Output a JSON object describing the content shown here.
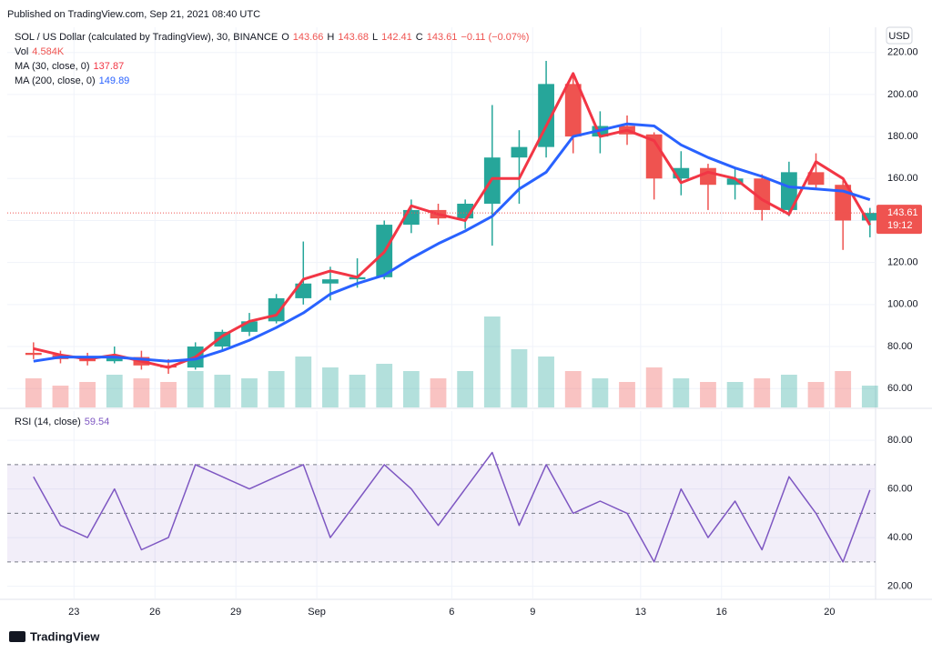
{
  "chart_data": {
    "type": "candlestick",
    "title": "Published on TradingView.com, Sep 21, 2021 08:40 UTC",
    "symbol": "SOL / US Dollar (calculated by TradingView), 30, BINANCE",
    "ohlc": [
      {
        "label": "O",
        "value": 143.66
      },
      {
        "label": "H",
        "value": 143.68
      },
      {
        "label": "L",
        "value": 142.41
      },
      {
        "label": "C",
        "value": 143.61
      }
    ],
    "change": "−0.11 (−0.07%)",
    "currency": "USD",
    "brand": "TradingView",
    "up_color": "#26a69a",
    "down_color": "#ef5350",
    "x": [
      "2021-08-21",
      "2021-08-22",
      "2021-08-23",
      "2021-08-24",
      "2021-08-25",
      "2021-08-26",
      "2021-08-27",
      "2021-08-28",
      "2021-08-29",
      "2021-08-30",
      "2021-08-31",
      "2021-09-01",
      "2021-09-02",
      "2021-09-03",
      "2021-09-04",
      "2021-09-05",
      "2021-09-06",
      "2021-09-07",
      "2021-09-08",
      "2021-09-09",
      "2021-09-10",
      "2021-09-11",
      "2021-09-12",
      "2021-09-13",
      "2021-09-14",
      "2021-09-15",
      "2021-09-16",
      "2021-09-17",
      "2021-09-18",
      "2021-09-19",
      "2021-09-20",
      "2021-09-21"
    ],
    "open": [
      77,
      76,
      74,
      73,
      75,
      71,
      70,
      80,
      87,
      92,
      103,
      110,
      112,
      113,
      138,
      145,
      141,
      148,
      170,
      175,
      205,
      180,
      185,
      181,
      160,
      165,
      157,
      160,
      145,
      163,
      157,
      140
    ],
    "high": [
      82,
      78,
      77,
      80,
      78,
      74,
      82,
      88,
      96,
      105,
      130,
      118,
      122,
      140,
      150,
      148,
      150,
      195,
      183,
      216,
      210,
      192,
      190,
      182,
      173,
      167,
      165,
      162,
      168,
      172,
      159,
      146
    ],
    "low": [
      74,
      72,
      71,
      72,
      69,
      67,
      69,
      78,
      85,
      91,
      100,
      102,
      108,
      112,
      134,
      138,
      136,
      128,
      148,
      170,
      172,
      172,
      176,
      150,
      152,
      145,
      150,
      140,
      142,
      155,
      126,
      132
    ],
    "close": [
      76,
      74,
      73,
      75,
      71,
      70,
      80,
      87,
      92,
      103,
      110,
      112,
      113,
      138,
      145,
      141,
      148,
      170,
      175,
      205,
      180,
      185,
      181,
      160,
      165,
      157,
      160,
      145,
      163,
      157,
      140,
      143.61
    ],
    "volume": {
      "name": "Vol",
      "value_label": "4.584K",
      "values": [
        8,
        6,
        7,
        9,
        8,
        7,
        10,
        9,
        8,
        10,
        14,
        11,
        9,
        12,
        10,
        8,
        10,
        25,
        16,
        14,
        10,
        8,
        7,
        11,
        8,
        7,
        7,
        8,
        9,
        7,
        10,
        6
      ]
    },
    "series": [
      {
        "name": "MA (30, close, 0)",
        "color": "#f23645",
        "last": 137.87,
        "values": [
          79,
          76,
          74,
          76,
          73,
          70,
          75,
          85,
          92,
          95,
          112,
          116,
          113,
          125,
          147,
          143,
          140,
          160,
          160,
          185,
          210,
          180,
          183,
          178,
          158,
          163,
          160,
          150,
          143,
          168,
          160,
          137.87
        ]
      },
      {
        "name": "MA (200, close, 0)",
        "color": "#2962ff",
        "last": 149.89,
        "values": [
          73,
          75,
          75,
          75,
          74,
          73,
          74,
          78,
          83,
          89,
          96,
          105,
          110,
          114,
          122,
          129,
          135,
          142,
          155,
          163,
          180,
          183,
          186,
          185,
          176,
          170,
          165,
          161,
          156,
          155,
          154,
          149.89
        ]
      }
    ],
    "last_price": {
      "value": 143.61,
      "label": "143.61",
      "countdown": "19:12"
    },
    "xlim": [
      "2021-08-20T12:40",
      "2021-09-21T17:00"
    ],
    "xticks": [
      {
        "value": "2021-08-23",
        "label": "23"
      },
      {
        "value": "2021-08-26",
        "label": "26"
      },
      {
        "value": "2021-08-29",
        "label": "29"
      },
      {
        "value": "2021-09-01",
        "label": "Sep"
      },
      {
        "value": "2021-09-06",
        "label": "6"
      },
      {
        "value": "2021-09-09",
        "label": "9"
      },
      {
        "value": "2021-09-13",
        "label": "13"
      },
      {
        "value": "2021-09-16",
        "label": "16"
      },
      {
        "value": "2021-09-20",
        "label": "20"
      }
    ],
    "ylim": [
      51,
      232
    ],
    "yticks": [
      {
        "value": 60,
        "label": "60.00"
      },
      {
        "value": 80,
        "label": "80.00"
      },
      {
        "value": 100,
        "label": "100.00"
      },
      {
        "value": 120,
        "label": "120.00"
      },
      {
        "value": 140,
        "label": "140.00"
      },
      {
        "value": 160,
        "label": "160.00"
      },
      {
        "value": 180,
        "label": "180.00"
      },
      {
        "value": 200,
        "label": "200.00"
      },
      {
        "value": 220,
        "label": "220.00"
      }
    ],
    "grid": true,
    "rsi": {
      "name": "RSI (14, close)",
      "color": "#7e57c2",
      "last": 59.54,
      "values": [
        65,
        45,
        40,
        60,
        35,
        40,
        70,
        65,
        60,
        65,
        70,
        40,
        55,
        70,
        60,
        45,
        60,
        75,
        45,
        70,
        50,
        55,
        50,
        30,
        60,
        40,
        55,
        35,
        65,
        50,
        30,
        59.54
      ],
      "bands": [
        30,
        50,
        70
      ],
      "ylim": [
        15,
        92
      ],
      "yticks": [
        {
          "value": 20,
          "label": "20.00"
        },
        {
          "value": 40,
          "label": "40.00"
        },
        {
          "value": 60,
          "label": "60.00"
        },
        {
          "value": 80,
          "label": "80.00"
        }
      ]
    }
  }
}
